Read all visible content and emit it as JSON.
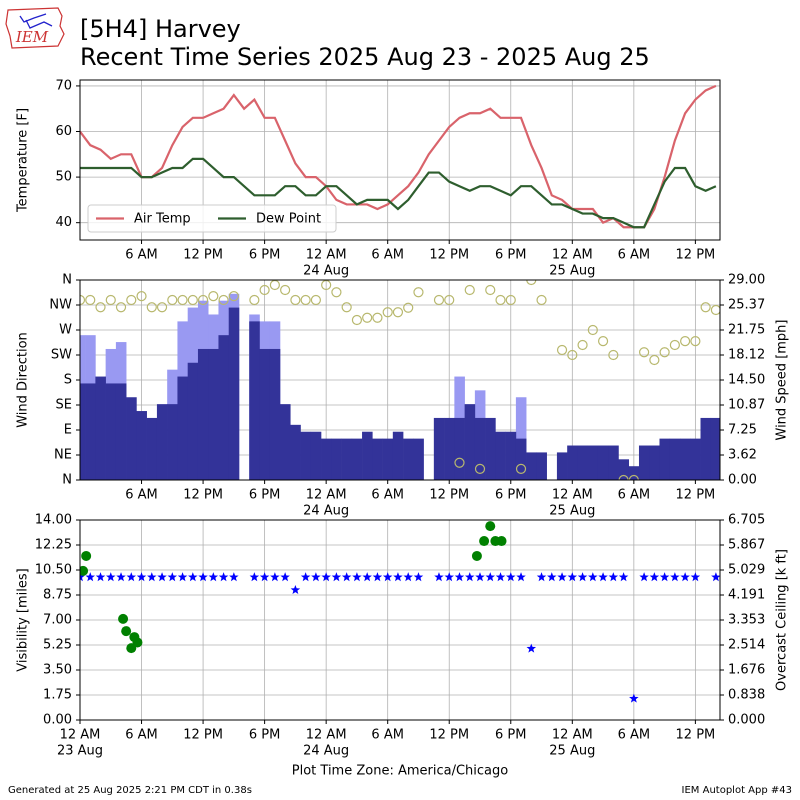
{
  "header": {
    "logo": "IEM",
    "title": "[5H4] Harvey",
    "subtitle": "Recent Time Series 2025 Aug 23 - 2025 Aug 25"
  },
  "footer": {
    "left": "Generated at 25 Aug 2025 2:21 PM CDT in 0.38s",
    "right": "IEM Autoplot App #43"
  },
  "chart_data": [
    {
      "type": "line",
      "ylabel": "Temperature [F]",
      "grid": true,
      "legend": "lower left",
      "xlim": [
        0,
        62.4
      ],
      "ylim": [
        36.2,
        71.3
      ],
      "yticks": [
        40,
        50,
        60,
        70
      ],
      "xticks": [
        {
          "value": 6,
          "label": "6 AM"
        },
        {
          "value": 12,
          "label": "12 PM"
        },
        {
          "value": 18,
          "label": "6 PM"
        },
        {
          "value": 24,
          "label": "12 AM",
          "date": "24 Aug"
        },
        {
          "value": 30,
          "label": "6 AM"
        },
        {
          "value": 36,
          "label": "12 PM"
        },
        {
          "value": 42,
          "label": "6 PM"
        },
        {
          "value": 48,
          "label": "12 AM",
          "date": "25 Aug"
        },
        {
          "value": 54,
          "label": "6 AM"
        },
        {
          "value": 60,
          "label": "12 PM"
        }
      ],
      "x": [
        0,
        1,
        2,
        3,
        4,
        5,
        6,
        7,
        8,
        9,
        10,
        11,
        12,
        13,
        14,
        15,
        16,
        17,
        18,
        19,
        20,
        21,
        22,
        23,
        24,
        25,
        26,
        27,
        28,
        29,
        30,
        31,
        32,
        33,
        34,
        35,
        36,
        37,
        38,
        39,
        40,
        41,
        42,
        43,
        44,
        45,
        46,
        47,
        48,
        49,
        50,
        51,
        52,
        53,
        54,
        55,
        56,
        57,
        58,
        59,
        60,
        61,
        62
      ],
      "series": [
        {
          "name": "Air Temp",
          "kind": "line",
          "color": "#d9636b",
          "values": [
            60,
            57,
            56,
            54,
            55,
            55,
            50,
            50,
            52,
            57,
            61,
            63,
            63,
            64,
            65,
            68,
            65,
            67,
            63,
            63,
            58,
            53,
            50,
            50,
            48,
            45,
            44,
            44,
            44,
            43,
            44,
            46,
            48,
            51,
            55,
            58,
            61,
            63,
            64,
            64,
            65,
            63,
            63,
            63,
            57,
            52,
            46,
            45,
            43,
            43,
            43,
            40,
            41,
            39,
            39,
            39,
            43,
            50,
            58,
            64,
            67,
            69,
            70
          ]
        },
        {
          "name": "Dew Point",
          "kind": "line",
          "color": "#2e5e2e",
          "values": [
            52,
            52,
            52,
            52,
            52,
            52,
            50,
            50,
            51,
            52,
            52,
            54,
            54,
            52,
            50,
            50,
            48,
            46,
            46,
            46,
            48,
            48,
            46,
            46,
            48,
            48,
            46,
            44,
            45,
            45,
            45,
            43,
            45,
            48,
            51,
            51,
            49,
            48,
            47,
            48,
            48,
            47,
            46,
            48,
            48,
            46,
            44,
            44,
            43,
            42,
            42,
            41,
            41,
            40,
            39,
            39,
            44,
            49,
            52,
            52,
            48,
            47,
            48
          ]
        }
      ]
    },
    {
      "type": "bar",
      "ylabel": "Wind Direction",
      "y2label": "Wind Speed [mph]",
      "grid": true,
      "xlim": [
        0,
        62.4
      ],
      "ylim": [
        0,
        360
      ],
      "yticks": [
        {
          "value": 0,
          "label": "N"
        },
        {
          "value": 45,
          "label": "NE"
        },
        {
          "value": 90,
          "label": "E"
        },
        {
          "value": 135,
          "label": "SE"
        },
        {
          "value": 180,
          "label": "S"
        },
        {
          "value": 225,
          "label": "SW"
        },
        {
          "value": 270,
          "label": "W"
        },
        {
          "value": 315,
          "label": "NW"
        },
        {
          "value": 360,
          "label": "N"
        }
      ],
      "y2lim": [
        0,
        29
      ],
      "y2ticks": [
        {
          "value": 0,
          "label": "0.00"
        },
        {
          "value": 3.625,
          "label": "3.62"
        },
        {
          "value": 7.25,
          "label": "7.25"
        },
        {
          "value": 10.875,
          "label": "10.87"
        },
        {
          "value": 14.5,
          "label": "14.50"
        },
        {
          "value": 18.125,
          "label": "18.12"
        },
        {
          "value": 21.75,
          "label": "21.75"
        },
        {
          "value": 25.375,
          "label": "25.37"
        },
        {
          "value": 29,
          "label": "29.00"
        }
      ],
      "xticks": [
        {
          "value": 6,
          "label": "6 AM"
        },
        {
          "value": 12,
          "label": "12 PM"
        },
        {
          "value": 18,
          "label": "6 PM"
        },
        {
          "value": 24,
          "label": "12 AM",
          "date": "24 Aug"
        },
        {
          "value": 30,
          "label": "6 AM"
        },
        {
          "value": 36,
          "label": "12 PM"
        },
        {
          "value": 42,
          "label": "6 PM"
        },
        {
          "value": 48,
          "label": "12 AM",
          "date": "25 Aug"
        },
        {
          "value": 54,
          "label": "6 AM"
        },
        {
          "value": 60,
          "label": "12 PM"
        }
      ],
      "x": [
        0,
        1,
        2,
        3,
        4,
        5,
        6,
        7,
        8,
        9,
        10,
        11,
        12,
        13,
        14,
        15,
        16,
        17,
        18,
        19,
        20,
        21,
        22,
        23,
        24,
        25,
        26,
        27,
        28,
        29,
        30,
        31,
        32,
        33,
        34,
        35,
        36,
        37,
        38,
        39,
        40,
        41,
        42,
        43,
        44,
        45,
        46,
        47,
        48,
        49,
        50,
        51,
        52,
        53,
        54,
        55,
        56,
        57,
        58,
        59,
        60,
        61,
        62
      ],
      "series": [
        {
          "kind": "bar",
          "axis": "y2",
          "color": "#9999f2",
          "values": [
            21,
            21,
            null,
            19,
            20,
            null,
            null,
            null,
            null,
            16,
            23,
            25,
            26,
            24,
            26,
            27,
            null,
            24,
            23,
            23,
            null,
            null,
            null,
            null,
            null,
            null,
            null,
            null,
            null,
            null,
            null,
            null,
            null,
            null,
            null,
            null,
            null,
            15,
            null,
            13,
            null,
            null,
            null,
            12,
            null,
            null,
            null,
            null,
            null,
            null,
            null,
            null,
            null,
            null,
            null,
            null,
            null,
            null,
            null,
            null,
            null,
            null,
            null
          ]
        },
        {
          "kind": "bar",
          "axis": "y2",
          "color": "#333399",
          "values": [
            14,
            14,
            15,
            14,
            14,
            12,
            10,
            9,
            11,
            11,
            15,
            17,
            19,
            19,
            21,
            25,
            0,
            23,
            19,
            19,
            11,
            8,
            7,
            7,
            6,
            6,
            6,
            6,
            7,
            6,
            6,
            7,
            6,
            6,
            0,
            9,
            9,
            9,
            11,
            9,
            9,
            7,
            7,
            6,
            4,
            4,
            0,
            4,
            5,
            5,
            5,
            5,
            5,
            3,
            2,
            5,
            5,
            6,
            6,
            6,
            6,
            9,
            9
          ]
        },
        {
          "kind": "scatter",
          "marker": "open-circle",
          "color": "#b8b86e",
          "values": [
            324,
            324,
            311,
            324,
            311,
            324,
            331,
            311,
            311,
            324,
            324,
            324,
            324,
            331,
            324,
            331,
            null,
            324,
            342,
            351,
            342,
            324,
            324,
            324,
            351,
            338,
            311,
            288,
            292,
            292,
            302,
            302,
            310,
            338,
            null,
            324,
            324,
            31,
            342,
            20,
            342,
            324,
            324,
            20,
            360,
            324,
            null,
            234,
            225,
            243,
            270,
            250,
            225,
            0,
            0,
            230,
            216,
            230,
            243,
            250,
            250,
            311,
            306
          ]
        }
      ]
    },
    {
      "type": "scatter",
      "ylabel": "Visibility [miles]",
      "y2label": "Overcast Ceiling [k ft]",
      "y2label_color": "#008000",
      "xlabel": "Plot Time Zone: America/Chicago",
      "grid": true,
      "xlim": [
        0,
        62.4
      ],
      "ylim": [
        0,
        14
      ],
      "yticks": [
        {
          "value": 0,
          "label": "0.00"
        },
        {
          "value": 1.75,
          "label": "1.75"
        },
        {
          "value": 3.5,
          "label": "3.50"
        },
        {
          "value": 5.25,
          "label": "5.25"
        },
        {
          "value": 7,
          "label": "7.00"
        },
        {
          "value": 8.75,
          "label": "8.75"
        },
        {
          "value": 10.5,
          "label": "10.50"
        },
        {
          "value": 12.25,
          "label": "12.25"
        },
        {
          "value": 14,
          "label": "14.00"
        }
      ],
      "y2lim": [
        0,
        6.705
      ],
      "y2ticks": [
        {
          "value": 0,
          "label": "0.000"
        },
        {
          "value": 0.838125,
          "label": "0.838"
        },
        {
          "value": 1.67625,
          "label": "1.676"
        },
        {
          "value": 2.514375,
          "label": "2.514"
        },
        {
          "value": 3.3525,
          "label": "3.353"
        },
        {
          "value": 4.190625,
          "label": "4.191"
        },
        {
          "value": 5.02875,
          "label": "5.029"
        },
        {
          "value": 5.866875,
          "label": "5.867"
        },
        {
          "value": 6.705,
          "label": "6.705"
        }
      ],
      "xticks": [
        {
          "value": 0,
          "label": "12 AM",
          "date": "23 Aug"
        },
        {
          "value": 6,
          "label": "6 AM"
        },
        {
          "value": 12,
          "label": "12 PM"
        },
        {
          "value": 18,
          "label": "6 PM"
        },
        {
          "value": 24,
          "label": "12 AM",
          "date": "24 Aug"
        },
        {
          "value": 30,
          "label": "6 AM"
        },
        {
          "value": 36,
          "label": "12 PM"
        },
        {
          "value": 42,
          "label": "6 PM"
        },
        {
          "value": 48,
          "label": "12 AM",
          "date": "25 Aug"
        },
        {
          "value": 54,
          "label": "6 AM"
        },
        {
          "value": 60,
          "label": "12 PM"
        }
      ],
      "x": [
        0,
        1,
        2,
        3,
        4,
        5,
        6,
        7,
        8,
        9,
        10,
        11,
        12,
        13,
        14,
        15,
        16,
        17,
        18,
        19,
        20,
        21,
        22,
        23,
        24,
        25,
        26,
        27,
        28,
        29,
        30,
        31,
        32,
        33,
        34,
        35,
        36,
        37,
        38,
        39,
        40,
        41,
        42,
        43,
        44,
        45,
        46,
        47,
        48,
        49,
        50,
        51,
        52,
        53,
        54,
        55,
        56,
        57,
        58,
        59,
        60,
        61,
        62
      ],
      "series": [
        {
          "kind": "scatter",
          "marker": "star",
          "color": "#0000ff",
          "values": [
            10,
            10,
            10,
            10,
            10,
            10,
            10,
            10,
            10,
            10,
            10,
            10,
            10,
            10,
            10,
            10,
            null,
            10,
            10,
            10,
            10,
            9.1,
            10,
            10,
            10,
            10,
            10,
            10,
            10,
            10,
            10,
            10,
            10,
            10,
            null,
            10,
            10,
            10,
            10,
            10,
            10,
            10,
            10,
            10,
            5,
            10,
            10,
            10,
            10,
            10,
            10,
            10,
            10,
            10,
            1.5,
            10,
            10,
            10,
            10,
            10,
            10,
            null,
            10
          ]
        },
        {
          "kind": "scatter",
          "marker": "circle",
          "axis": "y2",
          "color": "#008000",
          "x": [
            0.3,
            0.6,
            4.2,
            4.5,
            5.0,
            5.3,
            5.6,
            38.7,
            39.4,
            40.0,
            40.5,
            41.1
          ],
          "values": [
            5.0,
            5.5,
            3.39,
            2.98,
            2.41,
            2.78,
            2.6,
            5.5,
            6.0,
            6.5,
            6.0,
            6.0
          ]
        }
      ]
    }
  ]
}
